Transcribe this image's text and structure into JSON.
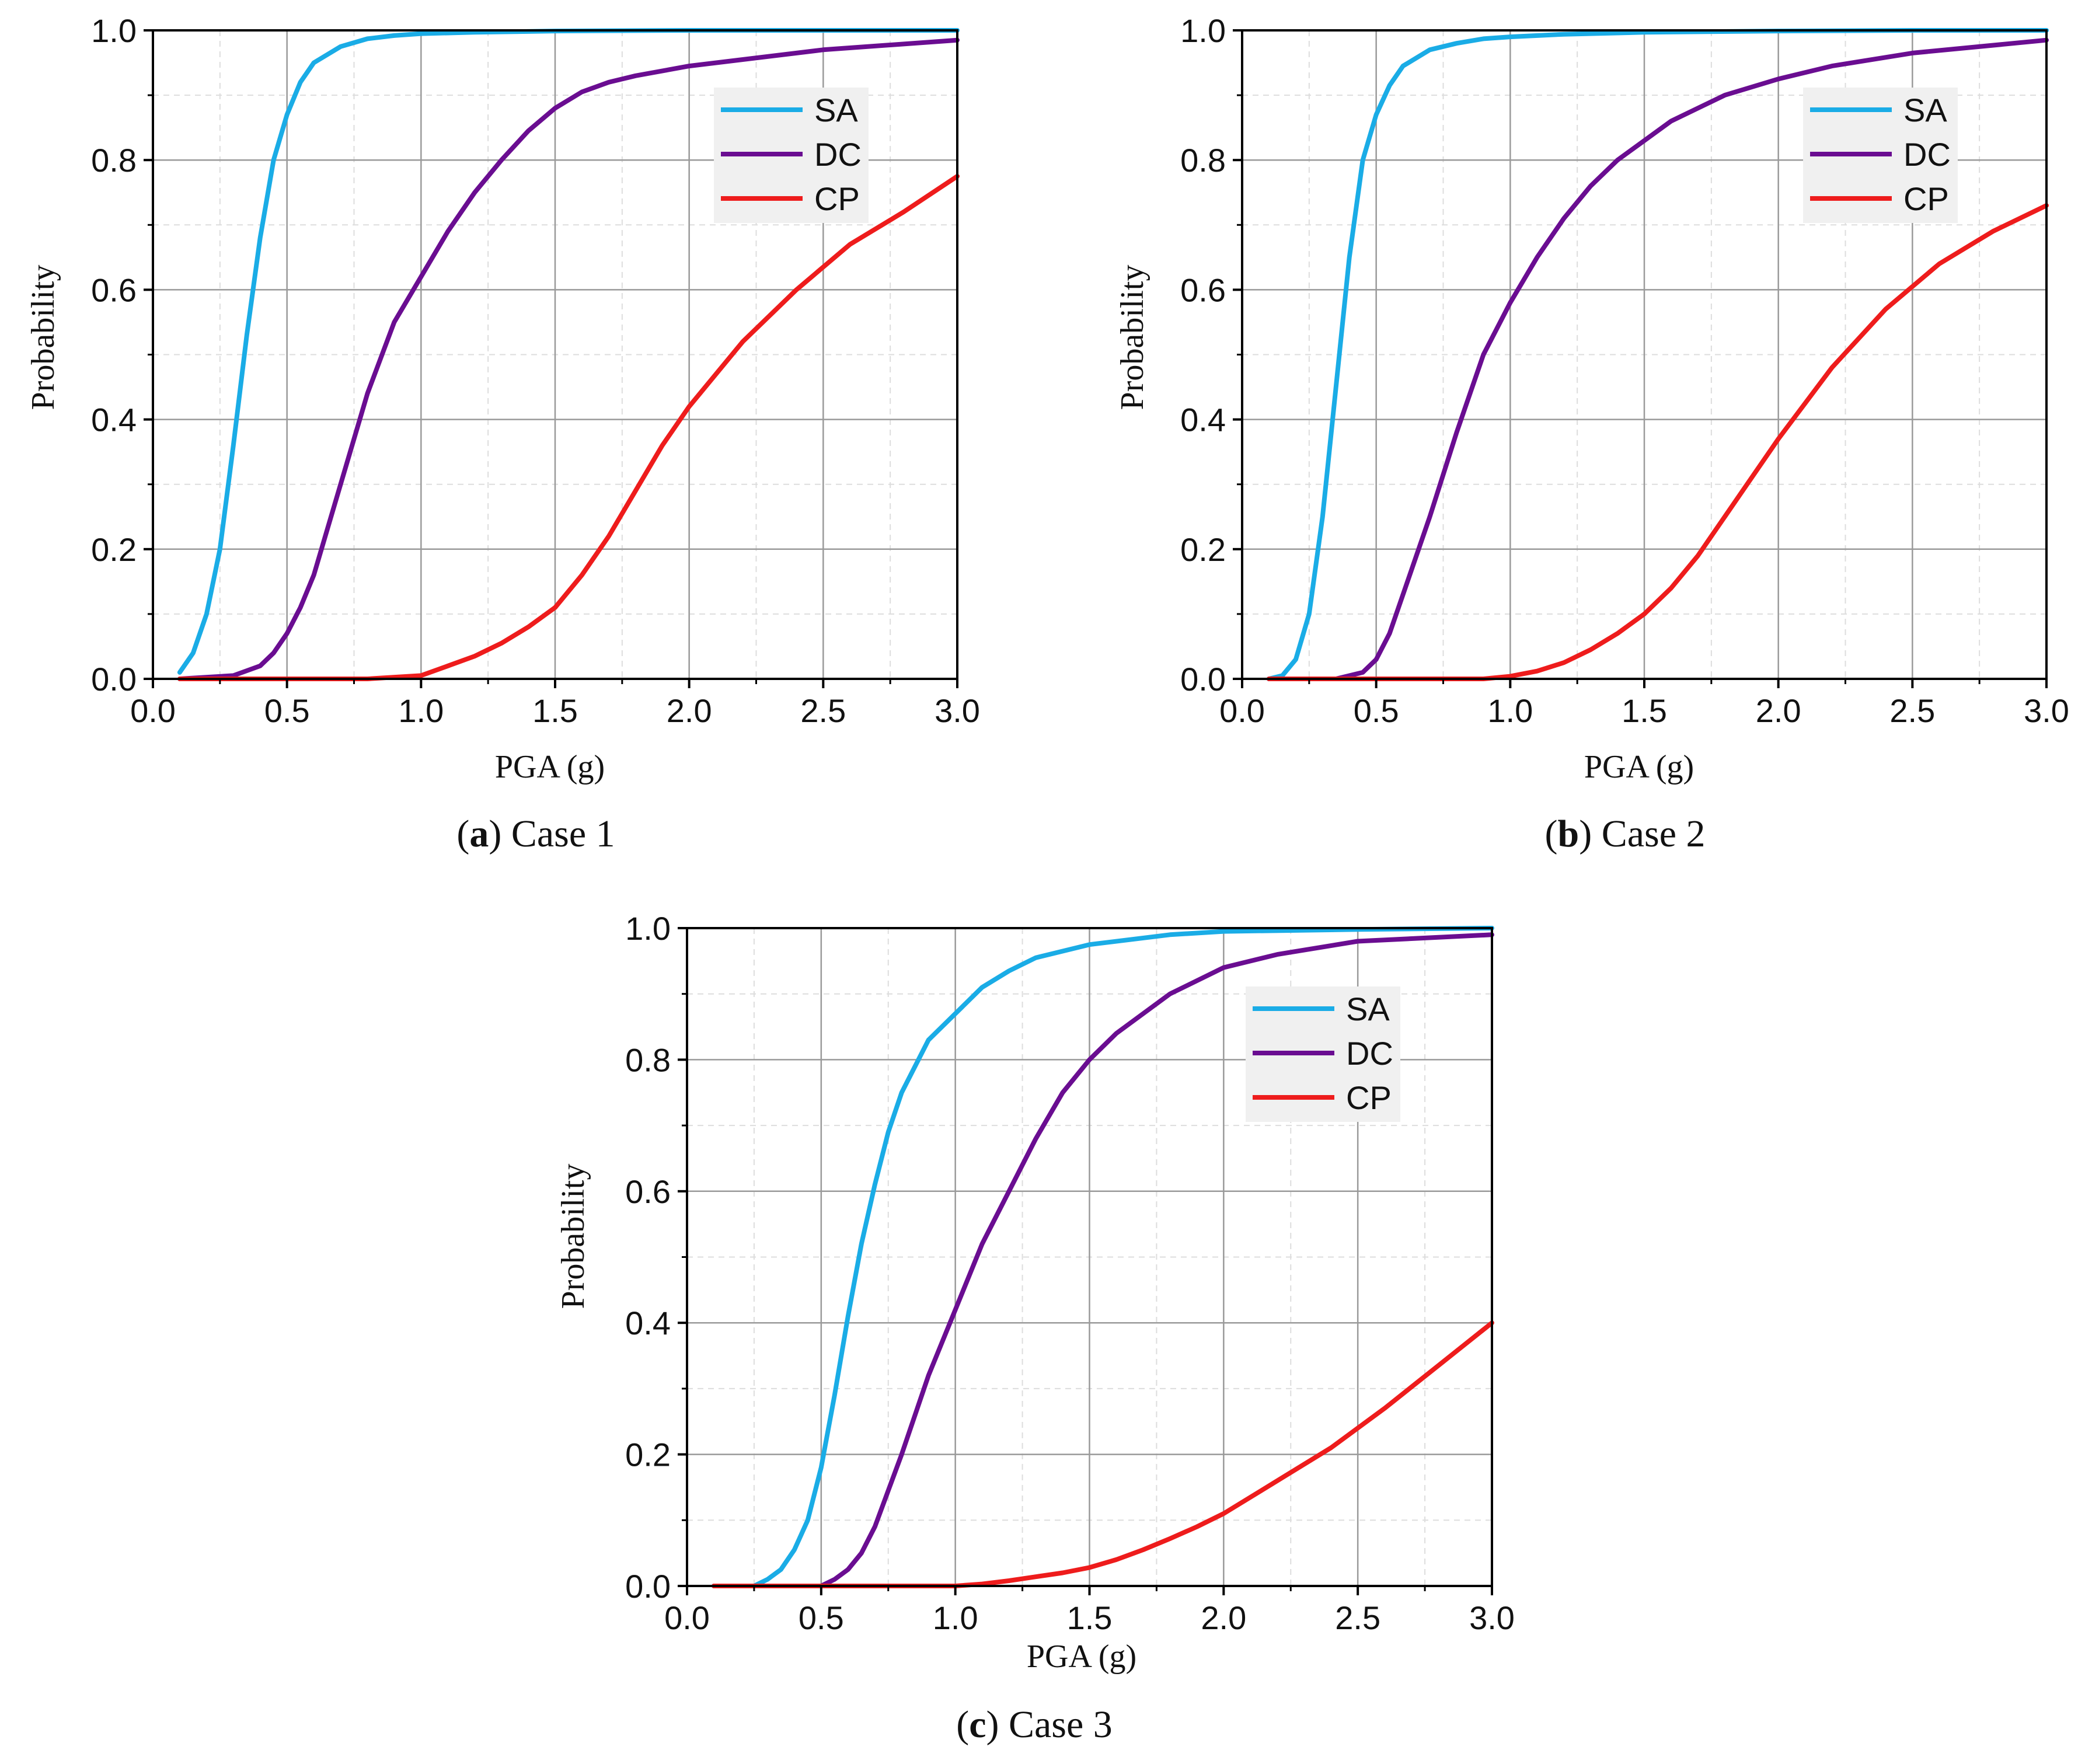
{
  "chart_data": [
    {
      "type": "line",
      "caption": {
        "letter": "a",
        "label": "Case 1"
      },
      "xlabel": "PGA (g)",
      "ylabel": "Probability",
      "xlim": [
        0,
        3.0
      ],
      "ylim": [
        0,
        1.0
      ],
      "xticks": [
        "0.0",
        "0.5",
        "1.0",
        "1.5",
        "2.0",
        "2.5",
        "3.0"
      ],
      "yticks": [
        "0.0",
        "0.2",
        "0.4",
        "0.6",
        "0.8",
        "1.0"
      ],
      "grid": true,
      "legend_position": "top-right",
      "series": [
        {
          "name": "SA",
          "color": "#1AACE6",
          "x": [
            0.1,
            0.15,
            0.2,
            0.25,
            0.3,
            0.35,
            0.4,
            0.45,
            0.5,
            0.55,
            0.6,
            0.7,
            0.8,
            0.9,
            1.0,
            1.2,
            1.5,
            2.0,
            2.5,
            3.0
          ],
          "y": [
            0.01,
            0.04,
            0.1,
            0.2,
            0.36,
            0.53,
            0.68,
            0.8,
            0.87,
            0.92,
            0.95,
            0.975,
            0.987,
            0.992,
            0.995,
            0.997,
            0.999,
            1.0,
            1.0,
            1.0
          ]
        },
        {
          "name": "DC",
          "color": "#6A0D91",
          "x": [
            0.1,
            0.3,
            0.4,
            0.45,
            0.5,
            0.55,
            0.6,
            0.7,
            0.8,
            0.9,
            1.0,
            1.1,
            1.2,
            1.3,
            1.4,
            1.5,
            1.6,
            1.7,
            1.8,
            2.0,
            2.2,
            2.5,
            3.0
          ],
          "y": [
            0.0,
            0.005,
            0.02,
            0.04,
            0.07,
            0.11,
            0.16,
            0.3,
            0.44,
            0.55,
            0.62,
            0.69,
            0.75,
            0.8,
            0.845,
            0.88,
            0.905,
            0.92,
            0.93,
            0.945,
            0.955,
            0.97,
            0.985
          ]
        },
        {
          "name": "CP",
          "color": "#EE1C1C",
          "x": [
            0.1,
            0.8,
            1.0,
            1.1,
            1.2,
            1.3,
            1.4,
            1.5,
            1.6,
            1.7,
            1.8,
            1.9,
            2.0,
            2.2,
            2.4,
            2.6,
            2.8,
            3.0
          ],
          "y": [
            0.0,
            0.0,
            0.005,
            0.02,
            0.035,
            0.055,
            0.08,
            0.11,
            0.16,
            0.22,
            0.29,
            0.36,
            0.42,
            0.52,
            0.6,
            0.67,
            0.72,
            0.775
          ]
        }
      ]
    },
    {
      "type": "line",
      "caption": {
        "letter": "b",
        "label": "Case 2"
      },
      "xlabel": "PGA (g)",
      "ylabel": "Probability",
      "xlim": [
        0,
        3.0
      ],
      "ylim": [
        0,
        1.0
      ],
      "xticks": [
        "0.0",
        "0.5",
        "1.0",
        "1.5",
        "2.0",
        "2.5",
        "3.0"
      ],
      "yticks": [
        "0.0",
        "0.2",
        "0.4",
        "0.6",
        "0.8",
        "1.0"
      ],
      "grid": true,
      "legend_position": "top-right",
      "series": [
        {
          "name": "SA",
          "color": "#1AACE6",
          "x": [
            0.1,
            0.15,
            0.2,
            0.25,
            0.3,
            0.35,
            0.4,
            0.45,
            0.5,
            0.55,
            0.6,
            0.7,
            0.8,
            0.9,
            1.0,
            1.2,
            1.5,
            2.0,
            2.5,
            3.0
          ],
          "y": [
            0.0,
            0.005,
            0.03,
            0.1,
            0.25,
            0.45,
            0.65,
            0.8,
            0.87,
            0.915,
            0.945,
            0.97,
            0.98,
            0.987,
            0.99,
            0.994,
            0.997,
            0.999,
            1.0,
            1.0
          ]
        },
        {
          "name": "DC",
          "color": "#6A0D91",
          "x": [
            0.1,
            0.35,
            0.45,
            0.5,
            0.55,
            0.6,
            0.7,
            0.8,
            0.9,
            1.0,
            1.1,
            1.2,
            1.3,
            1.4,
            1.5,
            1.6,
            1.8,
            2.0,
            2.2,
            2.5,
            3.0
          ],
          "y": [
            0.0,
            0.0,
            0.01,
            0.03,
            0.07,
            0.13,
            0.25,
            0.38,
            0.5,
            0.58,
            0.65,
            0.71,
            0.76,
            0.8,
            0.83,
            0.86,
            0.9,
            0.925,
            0.945,
            0.965,
            0.985
          ]
        },
        {
          "name": "CP",
          "color": "#EE1C1C",
          "x": [
            0.1,
            0.9,
            1.0,
            1.1,
            1.2,
            1.3,
            1.4,
            1.5,
            1.6,
            1.7,
            1.8,
            1.9,
            2.0,
            2.2,
            2.4,
            2.6,
            2.8,
            3.0
          ],
          "y": [
            0.0,
            0.0,
            0.004,
            0.012,
            0.025,
            0.045,
            0.07,
            0.1,
            0.14,
            0.19,
            0.25,
            0.31,
            0.37,
            0.48,
            0.57,
            0.64,
            0.69,
            0.73
          ]
        }
      ]
    },
    {
      "type": "line",
      "caption": {
        "letter": "c",
        "label": "Case 3"
      },
      "xlabel": "PGA (g)",
      "ylabel": "Probability",
      "xlim": [
        0,
        3.0
      ],
      "ylim": [
        0,
        1.0
      ],
      "xticks": [
        "0.0",
        "0.5",
        "1.0",
        "1.5",
        "2.0",
        "2.5",
        "3.0"
      ],
      "yticks": [
        "0.0",
        "0.2",
        "0.4",
        "0.6",
        "0.8",
        "1.0"
      ],
      "grid": true,
      "legend_position": "top-right",
      "series": [
        {
          "name": "SA",
          "color": "#1AACE6",
          "x": [
            0.1,
            0.25,
            0.3,
            0.35,
            0.4,
            0.45,
            0.5,
            0.55,
            0.6,
            0.65,
            0.7,
            0.75,
            0.8,
            0.9,
            1.0,
            1.1,
            1.2,
            1.3,
            1.5,
            1.8,
            2.0,
            2.5,
            3.0
          ],
          "y": [
            0.0,
            0.0,
            0.01,
            0.025,
            0.055,
            0.1,
            0.18,
            0.29,
            0.41,
            0.52,
            0.61,
            0.69,
            0.75,
            0.83,
            0.87,
            0.91,
            0.935,
            0.955,
            0.975,
            0.99,
            0.995,
            0.998,
            1.0
          ]
        },
        {
          "name": "DC",
          "color": "#6A0D91",
          "x": [
            0.1,
            0.5,
            0.55,
            0.6,
            0.65,
            0.7,
            0.8,
            0.9,
            1.0,
            1.1,
            1.2,
            1.3,
            1.4,
            1.5,
            1.6,
            1.8,
            2.0,
            2.2,
            2.5,
            3.0
          ],
          "y": [
            0.0,
            0.0,
            0.01,
            0.025,
            0.05,
            0.09,
            0.2,
            0.32,
            0.42,
            0.52,
            0.6,
            0.68,
            0.75,
            0.8,
            0.84,
            0.9,
            0.94,
            0.96,
            0.98,
            0.99
          ]
        },
        {
          "name": "CP",
          "color": "#EE1C1C",
          "x": [
            0.1,
            1.0,
            1.1,
            1.2,
            1.3,
            1.4,
            1.5,
            1.6,
            1.7,
            1.8,
            1.9,
            2.0,
            2.2,
            2.4,
            2.6,
            2.8,
            3.0
          ],
          "y": [
            0.0,
            0.0,
            0.003,
            0.008,
            0.014,
            0.02,
            0.028,
            0.04,
            0.055,
            0.072,
            0.09,
            0.11,
            0.16,
            0.21,
            0.27,
            0.335,
            0.4
          ]
        }
      ]
    }
  ]
}
